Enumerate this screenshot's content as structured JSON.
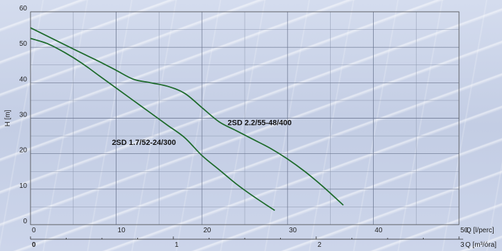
{
  "chart_data": {
    "type": "line",
    "title": "",
    "ylabel": "H [m]",
    "xlabel": "Q [l/perc]",
    "xlabel_secondary": "Q [m³/óra]",
    "xlim": [
      0,
      50
    ],
    "ylim": [
      0,
      60
    ],
    "x_ticks": [
      0,
      10,
      20,
      30,
      40,
      50
    ],
    "y_ticks": [
      0,
      10,
      20,
      30,
      40,
      50,
      60
    ],
    "x_minor_step": 5,
    "y_minor_step": 5,
    "secondary_x_ticks": [
      0,
      1,
      2,
      3
    ],
    "secondary_x_max": 3,
    "grid": true,
    "line_color": "#1e6b2c",
    "series": [
      {
        "name": "2SD 2.2/55-48/400",
        "x": [
          0,
          5,
          8,
          10,
          12,
          14,
          16,
          18,
          20,
          22,
          24,
          26,
          28,
          30,
          32,
          34,
          36.5
        ],
        "y": [
          55.5,
          49.5,
          46,
          43.5,
          41,
          40,
          39,
          37,
          33,
          29,
          26.5,
          24,
          21.5,
          18.5,
          15,
          11,
          5.5
        ]
      },
      {
        "name": "2SD 1.7/52-24/300",
        "x": [
          0,
          2,
          4,
          6,
          8,
          10,
          12,
          14,
          16,
          18,
          20,
          22,
          24,
          26,
          28.5
        ],
        "y": [
          52.5,
          51,
          48.5,
          45.5,
          42,
          38.5,
          35,
          31.5,
          28,
          24.5,
          19.5,
          15.5,
          11.5,
          8,
          4
        ]
      }
    ],
    "annotations": [
      {
        "text": "2SD 2.2/55-48/400",
        "x": 23,
        "y": 28
      },
      {
        "text": "2SD 1.7/52-24/300",
        "x": 9.5,
        "y": 22.5
      }
    ]
  }
}
